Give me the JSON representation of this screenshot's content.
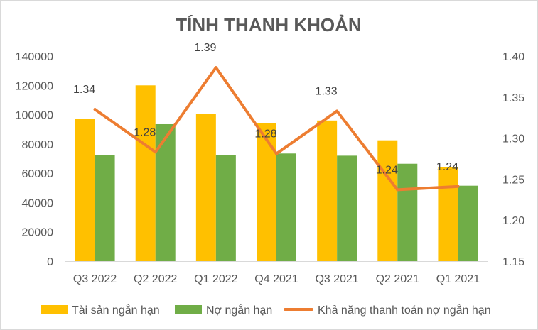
{
  "chart_data": {
    "type": "bar",
    "title": "TÍNH THANH KHOẢN",
    "categories": [
      "Q3 2022",
      "Q2 2022",
      "Q1 2022",
      "Q4 2021",
      "Q3 2021",
      "Q2 2021",
      "Q1 2021"
    ],
    "series": [
      {
        "name": "Tài sản ngắn hạn",
        "type": "bar",
        "axis": "left",
        "color": "#FFC000",
        "values": [
          97000,
          120000,
          100500,
          94000,
          96000,
          82500,
          64000
        ]
      },
      {
        "name": "Nợ ngắn hạn",
        "type": "bar",
        "axis": "left",
        "color": "#70AD47",
        "values": [
          72500,
          93500,
          72500,
          73500,
          72000,
          66500,
          51500
        ]
      },
      {
        "name": "Khả năng thanh toán nợ ngắn hạn",
        "type": "line",
        "axis": "right",
        "color": "#ED7D31",
        "values": [
          1.335,
          1.283,
          1.386,
          1.281,
          1.333,
          1.237,
          1.241
        ],
        "labels": [
          "1.34",
          "1.28",
          "1.39",
          "1.28",
          "1.33",
          "1.24",
          "1.24"
        ]
      }
    ],
    "y_left": {
      "min": 0,
      "max": 140000,
      "ticks": [
        "0",
        "20000",
        "40000",
        "60000",
        "80000",
        "100000",
        "120000",
        "140000"
      ]
    },
    "y_right": {
      "min": 1.15,
      "max": 1.4,
      "ticks": [
        "1.15",
        "1.20",
        "1.25",
        "1.30",
        "1.35",
        "1.40"
      ]
    },
    "grid": false,
    "legend": "bottom"
  }
}
